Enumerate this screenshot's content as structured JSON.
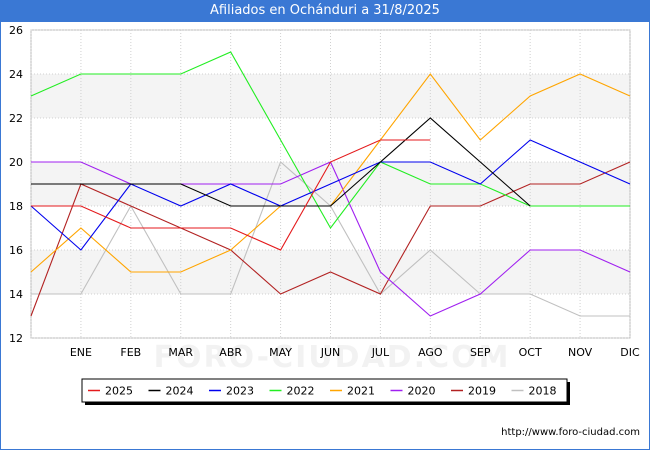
{
  "title": "Afiliados en Ochánduri a 31/8/2025",
  "source_text": "http://www.foro-ciudad.com",
  "watermark_text": "FORO-CIUDAD.COM",
  "chart_data": {
    "type": "line",
    "categories": [
      "",
      "ENE",
      "FEB",
      "MAR",
      "ABR",
      "MAY",
      "JUN",
      "JUL",
      "AGO",
      "SEP",
      "OCT",
      "NOV",
      "DIC"
    ],
    "ylim": [
      12,
      26
    ],
    "yticks": [
      12,
      14,
      16,
      18,
      20,
      22,
      24,
      26
    ],
    "grid": true,
    "legend_position": "bottom",
    "series": [
      {
        "name": "2025",
        "color": "#e41a1c",
        "values": [
          18,
          18,
          17,
          17,
          17,
          16,
          20,
          21,
          21,
          null,
          null,
          null,
          null
        ]
      },
      {
        "name": "2024",
        "color": "#000000",
        "values": [
          19,
          19,
          19,
          19,
          18,
          18,
          18,
          20,
          22,
          20,
          18,
          null,
          null
        ]
      },
      {
        "name": "2023",
        "color": "#0000ee",
        "values": [
          18,
          16,
          19,
          18,
          19,
          18,
          19,
          20,
          20,
          19,
          21,
          20,
          19
        ]
      },
      {
        "name": "2022",
        "color": "#22ee22",
        "values": [
          23,
          24,
          24,
          24,
          25,
          21,
          17,
          20,
          19,
          19,
          18,
          18,
          18
        ]
      },
      {
        "name": "2021",
        "color": "#ffa500",
        "values": [
          15,
          17,
          15,
          15,
          16,
          18,
          18,
          21,
          24,
          21,
          23,
          24,
          23
        ]
      },
      {
        "name": "2020",
        "color": "#a020f0",
        "values": [
          20,
          20,
          19,
          19,
          19,
          19,
          20,
          15,
          13,
          14,
          16,
          16,
          15
        ]
      },
      {
        "name": "2019",
        "color": "#b22222",
        "values": [
          13,
          19,
          18,
          17,
          16,
          14,
          15,
          14,
          18,
          18,
          19,
          19,
          20
        ]
      },
      {
        "name": "2018",
        "color": "#c0c0c0",
        "values": [
          14,
          14,
          18,
          14,
          14,
          20,
          18,
          14,
          16,
          14,
          14,
          13,
          13
        ]
      }
    ]
  }
}
